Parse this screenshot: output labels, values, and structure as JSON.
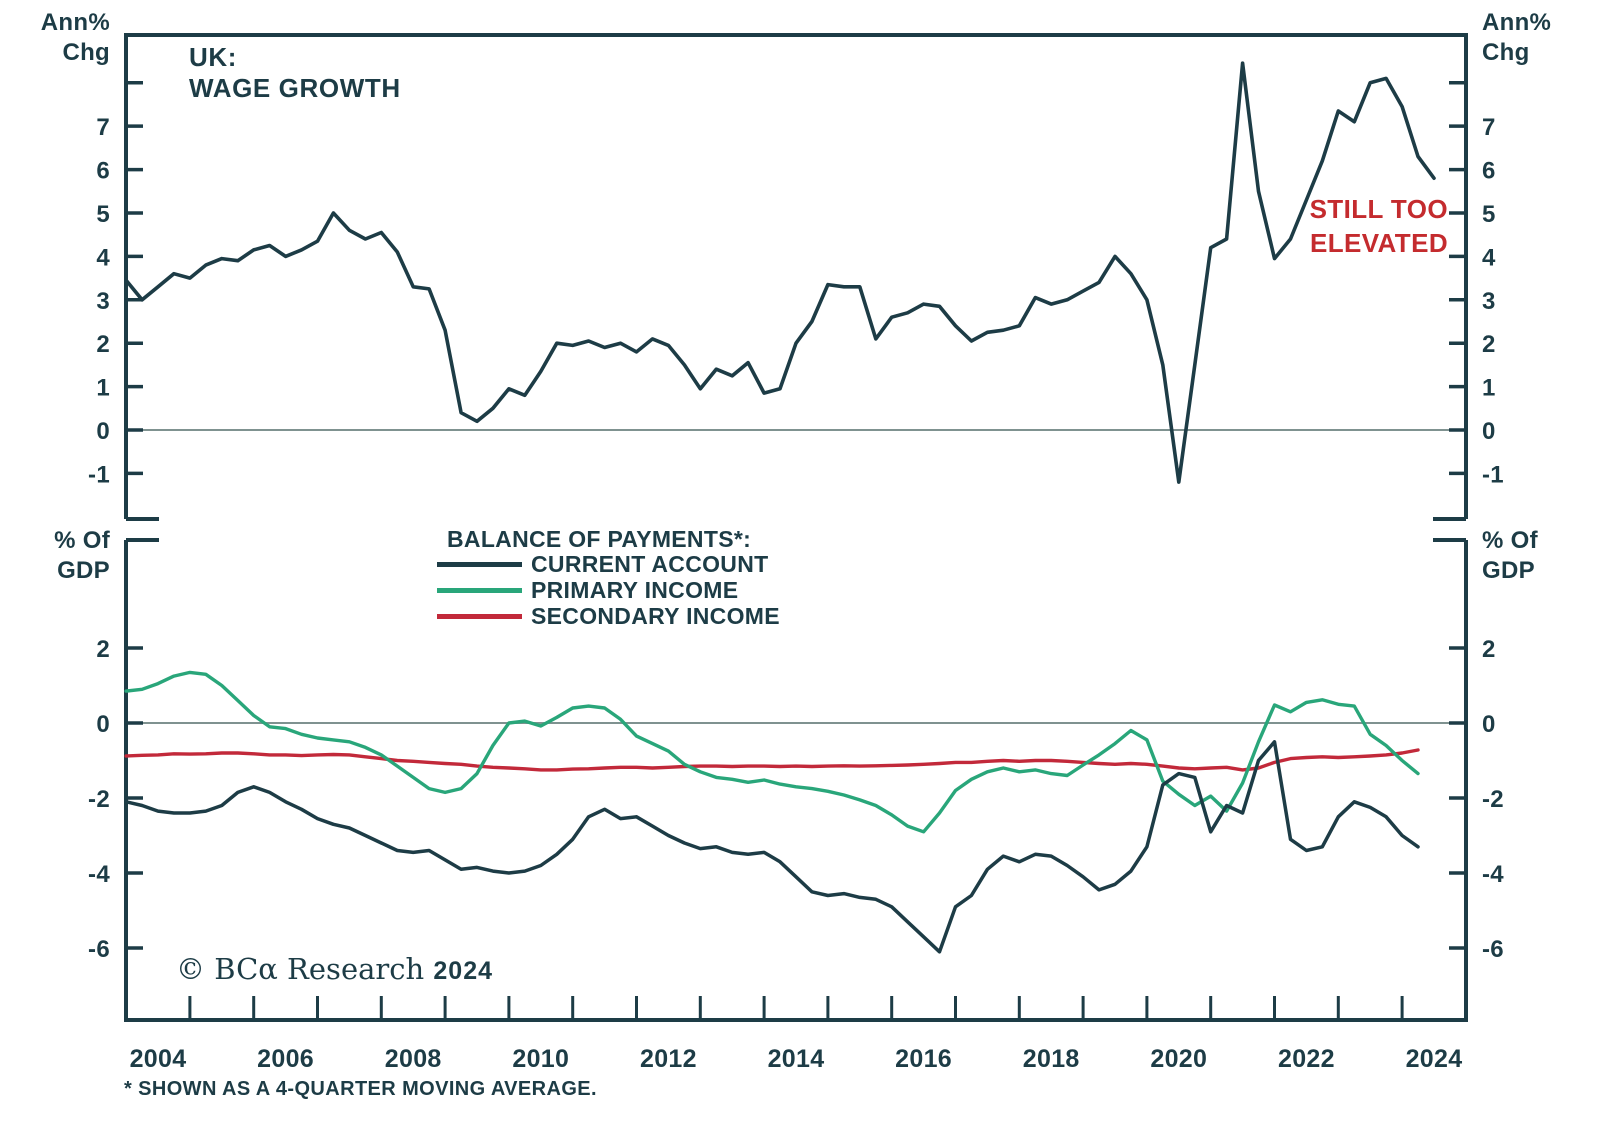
{
  "colors": {
    "dark": "#1d3c46",
    "green": "#29a67a",
    "red": "#c2293a",
    "annotation": "#c42b2e",
    "zero_line": "#7f9290"
  },
  "top_panel": {
    "title_line1": "UK:",
    "title_line2": "WAGE GROWTH",
    "axis_label_left_line1": "Ann%",
    "axis_label_left_line2": "Chg",
    "axis_label_right_line1": "Ann%",
    "axis_label_right_line2": "Chg",
    "annotation_line1": "STILL TOO",
    "annotation_line2": "ELEVATED"
  },
  "bottom_panel": {
    "axis_label_left_line1": "% Of",
    "axis_label_left_line2": "GDP",
    "axis_label_right_line1": "% Of",
    "axis_label_right_line2": "GDP",
    "legend_title": "BALANCE OF PAYMENTS*:",
    "legend_items": [
      {
        "label": "CURRENT ACCOUNT",
        "color_key": "dark"
      },
      {
        "label": "PRIMARY INCOME",
        "color_key": "green"
      },
      {
        "label": "SECONDARY INCOME",
        "color_key": "red"
      }
    ]
  },
  "footer": {
    "copyright": "© BCα Research",
    "copyright_year": "2024",
    "footnote": "* SHOWN AS A 4-QUARTER MOVING AVERAGE."
  },
  "x_axis": {
    "tick_year_start": 2004.5,
    "tick_step": 1,
    "tick_count": 21,
    "labels": [
      "2004",
      "2006",
      "2008",
      "2010",
      "2012",
      "2014",
      "2016",
      "2018",
      "2020",
      "2022",
      "2024"
    ]
  },
  "chart_data": [
    {
      "type": "line",
      "panel": "top",
      "title": "UK: WAGE GROWTH",
      "ylabel": "Ann% Chg",
      "xlabel": "",
      "x_start": 2003.5,
      "x_step": 0.25,
      "ylim": [
        -2.05,
        9.1
      ],
      "yticks_labeled": [
        7,
        6,
        5,
        4,
        3,
        2,
        1,
        0,
        -1
      ],
      "yticks_unlabeled": [
        8
      ],
      "grid": false,
      "zero_line": true,
      "annotation": "STILL TOO ELEVATED",
      "series": [
        {
          "name": "UK wage growth (ann % chg)",
          "color_key": "dark",
          "line_width": 3.6,
          "values": [
            3.45,
            3.0,
            3.3,
            3.6,
            3.5,
            3.8,
            3.95,
            3.9,
            4.15,
            4.25,
            4.0,
            4.15,
            4.35,
            5.0,
            4.6,
            4.4,
            4.55,
            4.1,
            3.3,
            3.25,
            2.3,
            0.4,
            0.2,
            0.5,
            0.95,
            0.8,
            1.35,
            2.0,
            1.95,
            2.05,
            1.9,
            2.0,
            1.8,
            2.1,
            1.95,
            1.5,
            0.95,
            1.4,
            1.25,
            1.55,
            0.85,
            0.95,
            2.0,
            2.5,
            3.35,
            3.3,
            3.3,
            2.1,
            2.6,
            2.7,
            2.9,
            2.85,
            2.4,
            2.05,
            2.25,
            2.3,
            2.4,
            3.05,
            2.9,
            3.0,
            3.2,
            3.4,
            4.0,
            3.6,
            3.0,
            1.5,
            -1.2,
            1.5,
            4.2,
            4.4,
            8.45,
            5.5,
            3.95,
            4.4,
            5.3,
            6.2,
            7.35,
            7.1,
            8.0,
            8.1,
            7.45,
            6.3,
            5.8
          ]
        }
      ]
    },
    {
      "type": "line",
      "panel": "bottom",
      "title": "BALANCE OF PAYMENTS (4-quarter moving average)",
      "ylabel": "% Of GDP",
      "xlabel": "",
      "x_start": 2003.5,
      "x_step": 0.25,
      "ylim": [
        -7.92,
        4.88
      ],
      "yticks_labeled": [
        2,
        0,
        -2,
        -4,
        -6
      ],
      "yticks_unlabeled": [],
      "grid": false,
      "zero_line": true,
      "series": [
        {
          "name": "SECONDARY INCOME",
          "color_key": "red",
          "line_width": 3.4,
          "values": [
            -0.88,
            -0.86,
            -0.85,
            -0.82,
            -0.83,
            -0.82,
            -0.8,
            -0.8,
            -0.82,
            -0.85,
            -0.85,
            -0.87,
            -0.85,
            -0.84,
            -0.85,
            -0.9,
            -0.95,
            -1.0,
            -1.02,
            -1.05,
            -1.08,
            -1.1,
            -1.15,
            -1.18,
            -1.2,
            -1.22,
            -1.25,
            -1.25,
            -1.23,
            -1.22,
            -1.2,
            -1.18,
            -1.18,
            -1.2,
            -1.18,
            -1.16,
            -1.15,
            -1.15,
            -1.16,
            -1.15,
            -1.15,
            -1.16,
            -1.15,
            -1.16,
            -1.15,
            -1.14,
            -1.15,
            -1.14,
            -1.13,
            -1.12,
            -1.1,
            -1.08,
            -1.05,
            -1.05,
            -1.02,
            -1.0,
            -1.02,
            -1.0,
            -1.0,
            -1.02,
            -1.05,
            -1.08,
            -1.1,
            -1.08,
            -1.1,
            -1.15,
            -1.2,
            -1.22,
            -1.2,
            -1.18,
            -1.25,
            -1.2,
            -1.05,
            -0.95,
            -0.92,
            -0.9,
            -0.92,
            -0.9,
            -0.88,
            -0.85,
            -0.8,
            -0.72
          ]
        },
        {
          "name": "PRIMARY INCOME",
          "color_key": "green",
          "line_width": 3.4,
          "values": [
            0.85,
            0.9,
            1.05,
            1.25,
            1.35,
            1.3,
            1.0,
            0.6,
            0.2,
            -0.1,
            -0.15,
            -0.3,
            -0.4,
            -0.45,
            -0.5,
            -0.65,
            -0.85,
            -1.15,
            -1.45,
            -1.75,
            -1.85,
            -1.75,
            -1.35,
            -0.6,
            0.0,
            0.05,
            -0.08,
            0.15,
            0.4,
            0.45,
            0.4,
            0.1,
            -0.35,
            -0.55,
            -0.75,
            -1.1,
            -1.3,
            -1.45,
            -1.5,
            -1.58,
            -1.52,
            -1.63,
            -1.7,
            -1.75,
            -1.82,
            -1.92,
            -2.05,
            -2.2,
            -2.45,
            -2.75,
            -2.9,
            -2.4,
            -1.8,
            -1.5,
            -1.3,
            -1.2,
            -1.3,
            -1.25,
            -1.35,
            -1.4,
            -1.12,
            -0.85,
            -0.55,
            -0.2,
            -0.45,
            -1.55,
            -1.9,
            -2.2,
            -1.95,
            -2.35,
            -1.6,
            -0.5,
            0.48,
            0.3,
            0.55,
            0.62,
            0.5,
            0.45,
            -0.3,
            -0.6,
            -1.0,
            -1.35
          ]
        },
        {
          "name": "CURRENT ACCOUNT",
          "color_key": "dark",
          "line_width": 3.5,
          "values": [
            -2.1,
            -2.2,
            -2.35,
            -2.4,
            -2.4,
            -2.35,
            -2.2,
            -1.85,
            -1.7,
            -1.85,
            -2.1,
            -2.3,
            -2.55,
            -2.7,
            -2.8,
            -3.0,
            -3.2,
            -3.4,
            -3.45,
            -3.4,
            -3.65,
            -3.9,
            -3.85,
            -3.95,
            -4.0,
            -3.95,
            -3.8,
            -3.5,
            -3.1,
            -2.5,
            -2.3,
            -2.55,
            -2.5,
            -2.75,
            -3.0,
            -3.2,
            -3.35,
            -3.3,
            -3.45,
            -3.5,
            -3.45,
            -3.7,
            -4.1,
            -4.5,
            -4.6,
            -4.55,
            -4.65,
            -4.7,
            -4.9,
            -5.3,
            -5.7,
            -6.1,
            -4.9,
            -4.6,
            -3.9,
            -3.55,
            -3.7,
            -3.5,
            -3.55,
            -3.8,
            -4.1,
            -4.45,
            -4.3,
            -3.95,
            -3.3,
            -1.65,
            -1.35,
            -1.45,
            -2.9,
            -2.2,
            -2.4,
            -1.0,
            -0.5,
            -3.1,
            -3.4,
            -3.3,
            -2.5,
            -2.1,
            -2.25,
            -2.5,
            -3.0,
            -3.3
          ]
        }
      ]
    }
  ]
}
